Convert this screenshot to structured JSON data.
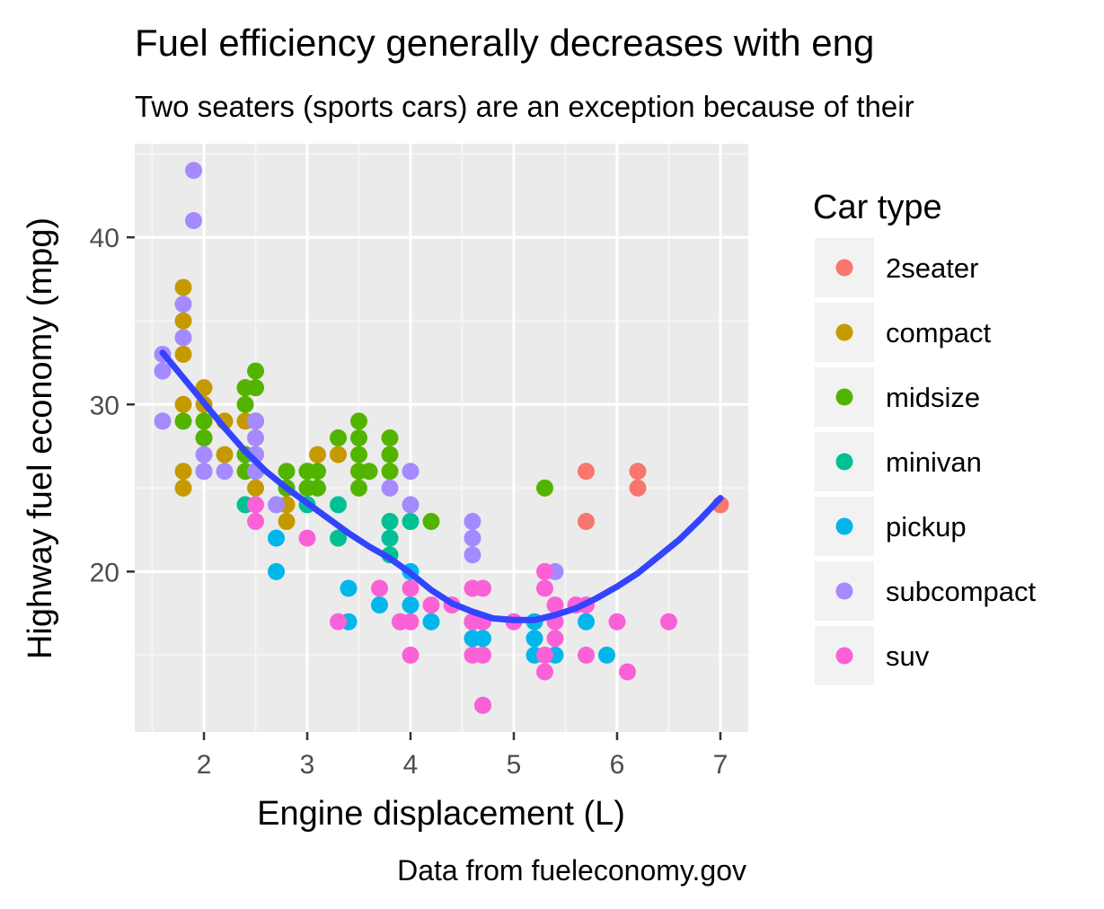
{
  "chart_data": {
    "type": "scatter",
    "title": "Fuel efficiency generally decreases with eng",
    "subtitle": "Two seaters (sports cars) are an exception because of their",
    "xlabel": "Engine displacement (L)",
    "ylabel": "Highway fuel economy (mpg)",
    "caption": "Data from fueleconomy.gov",
    "xlim": [
      1.33,
      7.27
    ],
    "ylim": [
      10.4,
      45.6
    ],
    "x_ticks": [
      2,
      3,
      4,
      5,
      6,
      7
    ],
    "x_tick_labels": [
      "2",
      "3",
      "4",
      "5",
      "6",
      "7"
    ],
    "y_ticks": [
      20,
      30,
      40
    ],
    "y_tick_labels": [
      "20",
      "30",
      "40"
    ],
    "grid": true,
    "legend": {
      "title": "Car type",
      "position": "right",
      "entries": [
        "2seater",
        "compact",
        "midsize",
        "minivan",
        "pickup",
        "subcompact",
        "suv"
      ]
    },
    "series": [
      {
        "name": "2seater",
        "color": "#F8766D",
        "points": [
          [
            5.7,
            26
          ],
          [
            5.7,
            23
          ],
          [
            6.2,
            26
          ],
          [
            6.2,
            25
          ],
          [
            7.0,
            24
          ]
        ]
      },
      {
        "name": "compact",
        "color": "#C49A00",
        "points": [
          [
            1.8,
            37
          ],
          [
            1.8,
            35
          ],
          [
            1.8,
            33
          ],
          [
            1.8,
            30
          ],
          [
            1.8,
            26
          ],
          [
            1.8,
            25
          ],
          [
            2.0,
            31
          ],
          [
            2.0,
            30
          ],
          [
            2.0,
            29
          ],
          [
            2.0,
            28
          ],
          [
            2.2,
            29
          ],
          [
            2.2,
            27
          ],
          [
            2.4,
            31
          ],
          [
            2.4,
            29
          ],
          [
            2.4,
            27
          ],
          [
            2.5,
            27
          ],
          [
            2.5,
            25
          ],
          [
            2.8,
            25
          ],
          [
            2.8,
            24
          ],
          [
            2.8,
            23
          ],
          [
            3.0,
            26
          ],
          [
            3.1,
            27
          ],
          [
            3.3,
            27
          ]
        ]
      },
      {
        "name": "midsize",
        "color": "#53B400",
        "points": [
          [
            1.8,
            29
          ],
          [
            2.0,
            29
          ],
          [
            2.0,
            28
          ],
          [
            2.0,
            26
          ],
          [
            2.4,
            31
          ],
          [
            2.4,
            30
          ],
          [
            2.4,
            27
          ],
          [
            2.4,
            26
          ],
          [
            2.5,
            32
          ],
          [
            2.5,
            31
          ],
          [
            2.5,
            29
          ],
          [
            2.5,
            26
          ],
          [
            2.8,
            26
          ],
          [
            2.8,
            25
          ],
          [
            3.0,
            26
          ],
          [
            3.0,
            25
          ],
          [
            3.1,
            26
          ],
          [
            3.1,
            25
          ],
          [
            3.3,
            28
          ],
          [
            3.5,
            29
          ],
          [
            3.5,
            28
          ],
          [
            3.5,
            27
          ],
          [
            3.5,
            26
          ],
          [
            3.5,
            25
          ],
          [
            3.6,
            26
          ],
          [
            3.8,
            28
          ],
          [
            3.8,
            27
          ],
          [
            3.8,
            26
          ],
          [
            4.2,
            23
          ],
          [
            5.3,
            25
          ]
        ]
      },
      {
        "name": "minivan",
        "color": "#00C094",
        "points": [
          [
            2.4,
            24
          ],
          [
            3.0,
            24
          ],
          [
            3.3,
            24
          ],
          [
            3.3,
            22
          ],
          [
            3.8,
            23
          ],
          [
            3.8,
            22
          ],
          [
            3.8,
            21
          ],
          [
            4.0,
            23
          ]
        ]
      },
      {
        "name": "pickup",
        "color": "#00B6EB",
        "points": [
          [
            2.7,
            22
          ],
          [
            2.7,
            20
          ],
          [
            3.4,
            19
          ],
          [
            3.4,
            17
          ],
          [
            3.7,
            18
          ],
          [
            3.9,
            17
          ],
          [
            4.0,
            20
          ],
          [
            4.0,
            18
          ],
          [
            4.2,
            17
          ],
          [
            4.6,
            17
          ],
          [
            4.6,
            16
          ],
          [
            4.7,
            17
          ],
          [
            4.7,
            16
          ],
          [
            4.7,
            12
          ],
          [
            5.2,
            17
          ],
          [
            5.2,
            16
          ],
          [
            5.2,
            15
          ],
          [
            5.4,
            15
          ],
          [
            5.7,
            17
          ],
          [
            5.9,
            15
          ]
        ]
      },
      {
        "name": "subcompact",
        "color": "#A58AFF",
        "points": [
          [
            1.6,
            33
          ],
          [
            1.6,
            32
          ],
          [
            1.6,
            29
          ],
          [
            1.8,
            36
          ],
          [
            1.8,
            34
          ],
          [
            1.9,
            44
          ],
          [
            1.9,
            41
          ],
          [
            2.0,
            27
          ],
          [
            2.0,
            26
          ],
          [
            2.2,
            26
          ],
          [
            2.5,
            29
          ],
          [
            2.5,
            28
          ],
          [
            2.5,
            27
          ],
          [
            2.5,
            26
          ],
          [
            2.7,
            24
          ],
          [
            3.8,
            25
          ],
          [
            4.0,
            26
          ],
          [
            4.0,
            24
          ],
          [
            4.6,
            23
          ],
          [
            4.6,
            22
          ],
          [
            4.6,
            21
          ],
          [
            5.4,
            20
          ]
        ]
      },
      {
        "name": "suv",
        "color": "#FB61D7",
        "points": [
          [
            2.5,
            24
          ],
          [
            2.5,
            23
          ],
          [
            3.0,
            22
          ],
          [
            3.3,
            17
          ],
          [
            3.7,
            19
          ],
          [
            3.9,
            17
          ],
          [
            4.0,
            19
          ],
          [
            4.0,
            17
          ],
          [
            4.0,
            15
          ],
          [
            4.2,
            18
          ],
          [
            4.4,
            18
          ],
          [
            4.6,
            19
          ],
          [
            4.6,
            17
          ],
          [
            4.6,
            15
          ],
          [
            4.7,
            19
          ],
          [
            4.7,
            17
          ],
          [
            4.7,
            15
          ],
          [
            4.7,
            12
          ],
          [
            5.0,
            17
          ],
          [
            5.3,
            20
          ],
          [
            5.3,
            19
          ],
          [
            5.3,
            15
          ],
          [
            5.3,
            14
          ],
          [
            5.4,
            18
          ],
          [
            5.4,
            17
          ],
          [
            5.4,
            16
          ],
          [
            5.6,
            18
          ],
          [
            5.7,
            18
          ],
          [
            5.7,
            15
          ],
          [
            6.0,
            17
          ],
          [
            6.1,
            14
          ],
          [
            6.5,
            17
          ]
        ]
      }
    ],
    "smooth": {
      "name": "loess",
      "color": "#3344FF",
      "x": [
        1.6,
        1.8,
        2.0,
        2.2,
        2.4,
        2.6,
        2.8,
        3.0,
        3.2,
        3.4,
        3.6,
        3.8,
        4.0,
        4.2,
        4.4,
        4.6,
        4.8,
        5.0,
        5.2,
        5.4,
        5.6,
        5.8,
        6.0,
        6.2,
        6.4,
        6.6,
        6.8,
        7.0
      ],
      "y": [
        33.1,
        31.6,
        30.1,
        28.6,
        27.2,
        26.0,
        25.0,
        24.1,
        23.2,
        22.3,
        21.5,
        20.8,
        19.9,
        18.9,
        18.1,
        17.6,
        17.2,
        17.1,
        17.1,
        17.4,
        17.8,
        18.4,
        19.1,
        19.9,
        20.9,
        21.9,
        23.1,
        24.4
      ]
    }
  }
}
